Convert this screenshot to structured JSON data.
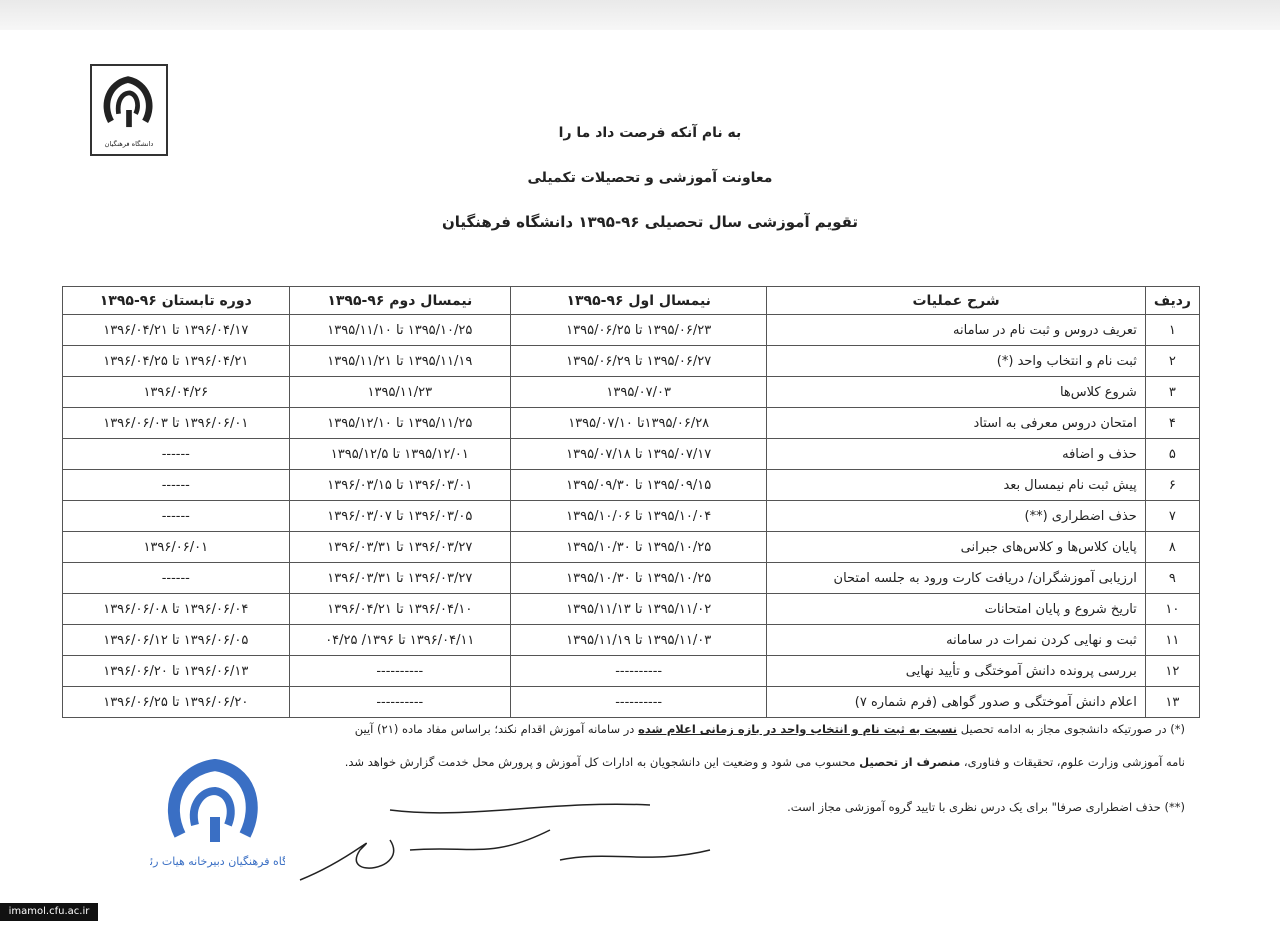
{
  "header": {
    "line1": "به نام آنکه فرصت داد ما را",
    "line2": "معاونت آموزشی و تحصیلات تکمیلی",
    "line3": "تقویم آموزشی سال تحصیلی ۹۶-۱۳۹۵ دانشگاه فرهنگیان"
  },
  "logo": {
    "text": "دانشگاه فرهنگیان"
  },
  "table": {
    "columns": [
      "ردیف",
      "شرح عملیات",
      "نیمسال اول ۹۶-۱۳۹۵",
      "نیمسال دوم ۹۶-۱۳۹۵",
      "دوره تابستان ۹۶-۱۳۹۵"
    ],
    "rows": [
      [
        "۱",
        "تعریف دروس و ثبت نام در سامانه",
        "۱۳۹۵/۰۶/۲۳ تا ۱۳۹۵/۰۶/۲۵",
        "۱۳۹۵/۱۰/۲۵ تا ۱۳۹۵/۱۱/۱۰",
        "۱۳۹۶/۰۴/۱۷ تا ۱۳۹۶/۰۴/۲۱"
      ],
      [
        "۲",
        "ثبت نام و انتخاب واحد (*)",
        "۱۳۹۵/۰۶/۲۷ تا ۱۳۹۵/۰۶/۲۹",
        "۱۳۹۵/۱۱/۱۹ تا ۱۳۹۵/۱۱/۲۱",
        "۱۳۹۶/۰۴/۲۱ تا ۱۳۹۶/۰۴/۲۵"
      ],
      [
        "۳",
        "شروع کلاس‌ها",
        "۱۳۹۵/۰۷/۰۳",
        "۱۳۹۵/۱۱/۲۳",
        "۱۳۹۶/۰۴/۲۶"
      ],
      [
        "۴",
        "امتحان دروس معرفی به استاد",
        "۱۳۹۵/۰۶/۲۸تا ۱۳۹۵/۰۷/۱۰",
        "۱۳۹۵/۱۱/۲۵ تا ۱۳۹۵/۱۲/۱۰",
        "۱۳۹۶/۰۶/۰۱ تا ۱۳۹۶/۰۶/۰۳"
      ],
      [
        "۵",
        "حذف و اضافه",
        "۱۳۹۵/۰۷/۱۷ تا ۱۳۹۵/۰۷/۱۸",
        "۱۳۹۵/۱۲/۰۱ تا ۱۳۹۵/۱۲/۵",
        "------"
      ],
      [
        "۶",
        "پیش ثبت نام نیمسال بعد",
        "۱۳۹۵/۰۹/۱۵ تا ۱۳۹۵/۰۹/۳۰",
        "۱۳۹۶/۰۳/۰۱ تا ۱۳۹۶/۰۳/۱۵",
        "------"
      ],
      [
        "۷",
        "حذف اضطراری (**)",
        "۱۳۹۵/۱۰/۰۴ تا ۱۳۹۵/۱۰/۰۶",
        "۱۳۹۶/۰۳/۰۵ تا ۱۳۹۶/۰۳/۰۷",
        "------"
      ],
      [
        "۸",
        "پایان کلاس‌ها و کلاس‌های جبرانی",
        "۱۳۹۵/۱۰/۲۵ تا ۱۳۹۵/۱۰/۳۰",
        "۱۳۹۶/۰۳/۲۷ تا ۱۳۹۶/۰۳/۳۱",
        "۱۳۹۶/۰۶/۰۱"
      ],
      [
        "۹",
        "ارزیابی آموزشگران/ دریافت کارت ورود به جلسه امتحان",
        "۱۳۹۵/۱۰/۲۵ تا ۱۳۹۵/۱۰/۳۰",
        "۱۳۹۶/۰۳/۲۷ تا ۱۳۹۶/۰۳/۳۱",
        "------"
      ],
      [
        "۱۰",
        "تاریخ شروع و پایان امتحانات",
        "۱۳۹۵/۱۱/۰۲ تا ۱۳۹۵/۱۱/۱۳",
        "۱۳۹۶/۰۴/۱۰ تا ۱۳۹۶/۰۴/۲۱",
        "۱۳۹۶/۰۶/۰۴ تا ۱۳۹۶/۰۶/۰۸"
      ],
      [
        "۱۱",
        "ثبت و نهایی کردن نمرات در سامانه",
        "۱۳۹۵/۱۱/۰۳ تا ۱۳۹۵/۱۱/۱۹",
        "۱۳۹۶/۰۴/۱۱ تا ۱۳۹۶/ ۰۴/۲۵",
        "۱۳۹۶/۰۶/۰۵ تا ۱۳۹۶/۰۶/۱۲"
      ],
      [
        "۱۲",
        "بررسی پرونده دانش آموختگی و تأیید نهایی",
        "----------",
        "----------",
        "۱۳۹۶/۰۶/۱۳ تا ۱۳۹۶/۰۶/۲۰"
      ],
      [
        "۱۳",
        "اعلام دانش آموختگی و صدور گواهی (فرم شماره ۷)",
        "----------",
        "----------",
        "۱۳۹۶/۰۶/۲۰ تا ۱۳۹۶/۰۶/۲۵"
      ]
    ]
  },
  "notes": {
    "n1a": "(*) در صورتیکه دانشجوی مجاز به ادامه تحصیل ",
    "n1b": "نسبت به ثبت نام و انتخاب واحد در بازه زمانی اعلام شده",
    "n1c": " در سامانه آموزش اقدام نکند؛ براساس مفاد ماده (۲۱) آیین",
    "n2a": "نامه آموزشی وزارت علوم، تحقیقات و فناوری، ",
    "n2b": "منصرف از تحصیل",
    "n2c": " محسوب می شود و وضعیت این دانشجویان به ادارات کل آموزش و پرورش محل خدمت گزارش خواهد شد.",
    "n3": "(**) حذف اضطراری صرفا\" برای یک درس نظری با تایید گروه آموزشی مجاز است."
  },
  "stamp": {
    "text": "دانشگاه فرهنگیان دبیرخانه هیات رئیسه"
  },
  "watermark": "imamol.cfu.ac.ir",
  "colors": {
    "stamp": "#3a6fc4",
    "ink": "#222222"
  }
}
